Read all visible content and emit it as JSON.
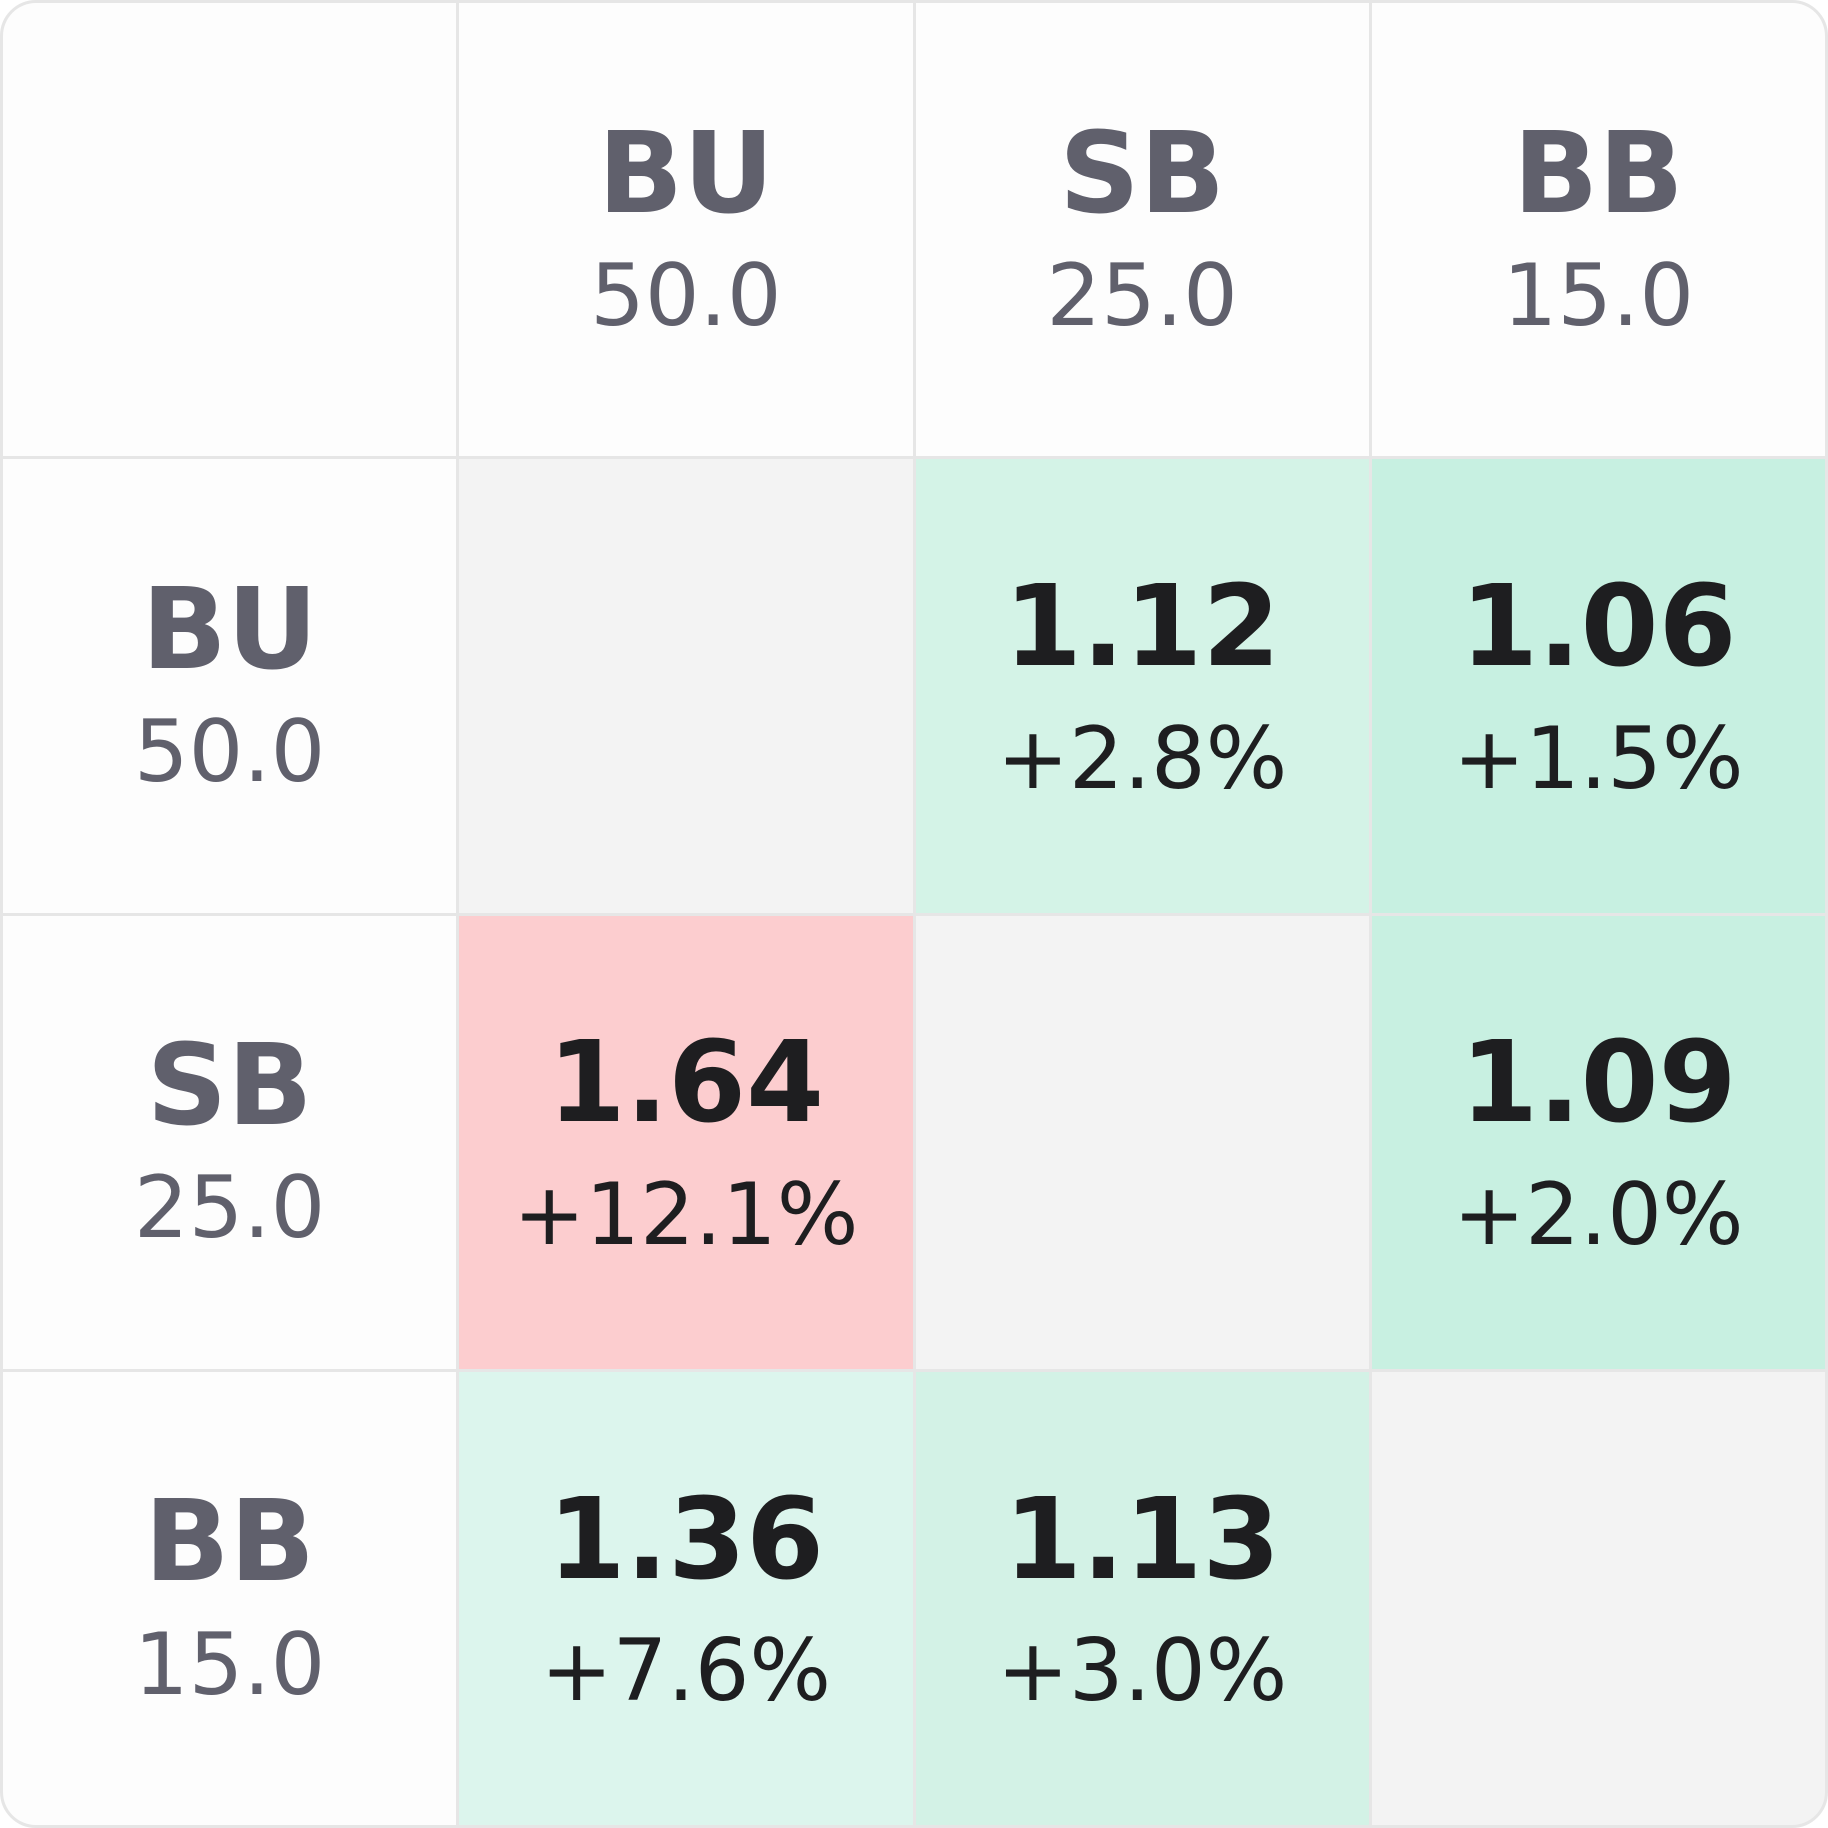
{
  "table": {
    "columns": [
      {
        "position": "BU",
        "stack": "50.0"
      },
      {
        "position": "SB",
        "stack": "25.0"
      },
      {
        "position": "BB",
        "stack": "15.0"
      }
    ],
    "rows": [
      {
        "position": "BU",
        "stack": "50.0",
        "cells": [
          null,
          {
            "value": "1.12",
            "change": "+2.8%",
            "color": "#d4f3e7"
          },
          {
            "value": "1.06",
            "change": "+1.5%",
            "color": "#c7f0e1"
          }
        ]
      },
      {
        "position": "SB",
        "stack": "25.0",
        "cells": [
          {
            "value": "1.64",
            "change": "+12.1%",
            "color": "#fccdcf"
          },
          null,
          {
            "value": "1.09",
            "change": "+2.0%",
            "color": "#c8f0e1"
          }
        ]
      },
      {
        "position": "BB",
        "stack": "15.0",
        "cells": [
          {
            "value": "1.36",
            "change": "+7.6%",
            "color": "#dcf5ed"
          },
          {
            "value": "1.13",
            "change": "+3.0%",
            "color": "#d3f2e6"
          },
          null
        ]
      }
    ]
  }
}
